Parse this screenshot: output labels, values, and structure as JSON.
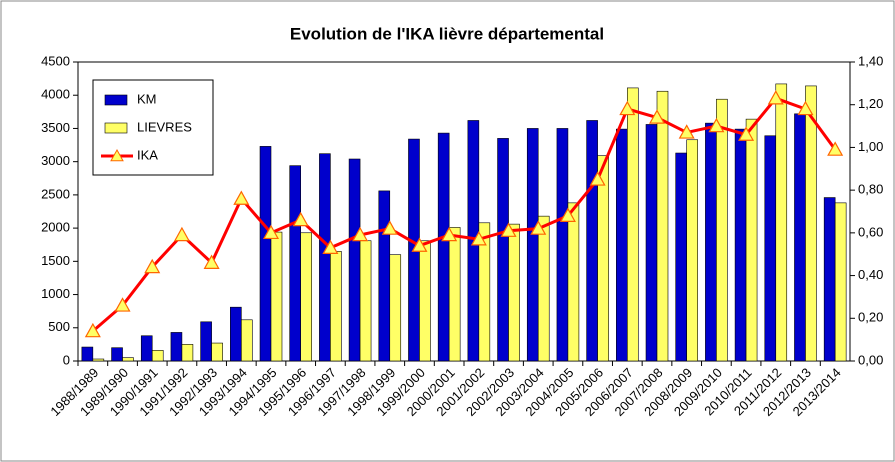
{
  "chart_data": {
    "type": "bar-line",
    "title": "Evolution de l'IKA lièvre départemental",
    "categories": [
      "1988/1989",
      "1989/1990",
      "1990/1991",
      "1991/1992",
      "1992/1993",
      "1993/1994",
      "1994/1995",
      "1995/1996",
      "1996/1997",
      "1997/1998",
      "1998/1999",
      "1999/2000",
      "2000/2001",
      "2001/2002",
      "2002/2003",
      "2003/2004",
      "2004/2005",
      "2005/2006",
      "2006/2007",
      "2007/2008",
      "2008/2009",
      "2009/2010",
      "2010/2011",
      "2011/2012",
      "2012/2013",
      "2013/2014"
    ],
    "series": [
      {
        "name": "KM",
        "type": "bar",
        "color": "#0000cc",
        "values": [
          210,
          200,
          380,
          430,
          590,
          810,
          3230,
          2940,
          3120,
          3040,
          2560,
          3340,
          3430,
          3620,
          3350,
          3500,
          3500,
          3620,
          3490,
          3560,
          3130,
          3580,
          3490,
          3390,
          3720,
          2460
        ]
      },
      {
        "name": "LIEVRES",
        "type": "bar",
        "color": "#ffff66",
        "values": [
          30,
          50,
          160,
          250,
          270,
          620,
          1940,
          1930,
          1650,
          1810,
          1600,
          1810,
          2010,
          2080,
          2060,
          2180,
          2380,
          3090,
          4110,
          4060,
          3330,
          3940,
          3640,
          4170,
          4140,
          2380
        ]
      },
      {
        "name": "IKA",
        "type": "line",
        "axis": "y2",
        "color": "#ff0000",
        "values": [
          0.14,
          0.26,
          0.44,
          0.59,
          0.46,
          0.76,
          0.6,
          0.66,
          0.53,
          0.59,
          0.62,
          0.54,
          0.59,
          0.57,
          0.61,
          0.62,
          0.68,
          0.85,
          1.18,
          1.14,
          1.07,
          1.1,
          1.06,
          1.23,
          1.18,
          0.99
        ]
      }
    ],
    "ylim": [
      0,
      4500
    ],
    "yticks": [
      0,
      500,
      1000,
      1500,
      2000,
      2500,
      3000,
      3500,
      4000,
      4500
    ],
    "y2lim": [
      0,
      1.4
    ],
    "y2ticks": [
      {
        "value": 0,
        "label": "0,00"
      },
      {
        "value": 0.2,
        "label": "0,20"
      },
      {
        "value": 0.4,
        "label": "0,40"
      },
      {
        "value": 0.6,
        "label": "0,60"
      },
      {
        "value": 0.8,
        "label": "0,80"
      },
      {
        "value": 1.0,
        "label": "1,00"
      },
      {
        "value": 1.2,
        "label": "1,20"
      },
      {
        "value": 1.4,
        "label": "1,40"
      }
    ],
    "legend": "upper-left",
    "grid": false
  }
}
